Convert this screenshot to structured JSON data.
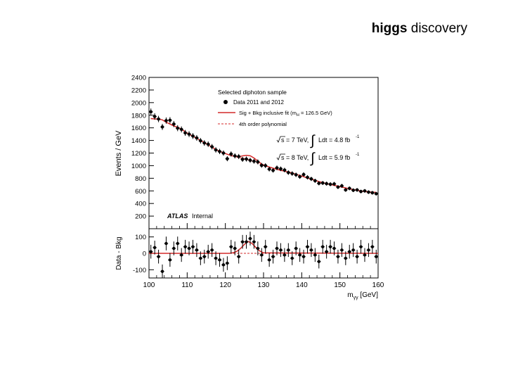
{
  "slide": {
    "title_bold": "higgs",
    "title_rest": " discovery"
  },
  "chart_data": [
    {
      "type": "scatter",
      "title": "",
      "xlabel": "",
      "ylabel": "Events / GeV",
      "xlim": [
        100,
        160
      ],
      "ylim": [
        0,
        2400
      ],
      "yticks": [
        200,
        400,
        600,
        800,
        1000,
        1200,
        1400,
        1600,
        1800,
        2000,
        2200,
        2400
      ],
      "grid": false,
      "legend_placement": "top-right",
      "legend": {
        "header": "Selected diphoton sample",
        "data": "Data 2011 and 2012",
        "fit": "Sig + Bkg inclusive fit (m",
        "fit_sub": "H",
        "fit_tail": " = 126.5 GeV)",
        "poly": "4th order polynomial"
      },
      "lumi": [
        {
          "energy": "s = 7 TeV,",
          "integral": "Ldt = 4.8 fb",
          "sup": "-1"
        },
        {
          "energy": "s = 8 TeV,",
          "integral": "Ldt = 5.9 fb",
          "sup": "-1"
        }
      ],
      "label_bold": "ATLAS",
      "label": "Internal",
      "series": [
        {
          "name": "Data 2011 and 2012",
          "x": [
            100.5,
            101.5,
            102.5,
            103.5,
            104.5,
            105.5,
            106.5,
            107.5,
            108.5,
            109.5,
            110.5,
            111.5,
            112.5,
            113.5,
            114.5,
            115.5,
            116.5,
            117.5,
            118.5,
            119.5,
            120.5,
            121.5,
            122.5,
            123.5,
            124.5,
            125.5,
            126.5,
            127.5,
            128.5,
            129.5,
            130.5,
            131.5,
            132.5,
            133.5,
            134.5,
            135.5,
            136.5,
            137.5,
            138.5,
            139.5,
            140.5,
            141.5,
            142.5,
            143.5,
            144.5,
            145.5,
            146.5,
            147.5,
            148.5,
            149.5,
            150.5,
            151.5,
            152.5,
            153.5,
            154.5,
            155.5,
            156.5,
            157.5,
            158.5,
            159.5
          ],
          "y": [
            1855,
            1780,
            1740,
            1615,
            1715,
            1720,
            1660,
            1595,
            1575,
            1520,
            1500,
            1470,
            1440,
            1395,
            1360,
            1340,
            1300,
            1250,
            1225,
            1200,
            1110,
            1185,
            1155,
            1145,
            1100,
            1105,
            1085,
            1070,
            1060,
            1005,
            1000,
            945,
            925,
            965,
            950,
            930,
            890,
            875,
            855,
            825,
            860,
            815,
            790,
            760,
            720,
            725,
            715,
            705,
            710,
            660,
            680,
            615,
            640,
            610,
            615,
            590,
            600,
            580,
            570,
            555
          ]
        },
        {
          "name": "Sig + Bkg inclusive fit",
          "kind": "line",
          "style": "solid",
          "color": "#d42a2a"
        },
        {
          "name": "4th order polynomial",
          "kind": "line",
          "style": "dashed",
          "color": "#d42a2a"
        }
      ]
    },
    {
      "type": "scatter",
      "xlabel": "m",
      "xlabel_sub": "γγ",
      "xlabel_tail": " [GeV]",
      "ylabel": "Data - Bkg",
      "xlim": [
        100,
        160
      ],
      "ylim": [
        -150,
        150
      ],
      "xticks": [
        100,
        110,
        120,
        130,
        140,
        150,
        160
      ],
      "yticks": [
        -100,
        0,
        100
      ],
      "series": [
        {
          "name": "Data - Bkg",
          "x": [
            100.5,
            101.5,
            102.5,
            103.5,
            104.5,
            105.5,
            106.5,
            107.5,
            108.5,
            109.5,
            110.5,
            111.5,
            112.5,
            113.5,
            114.5,
            115.5,
            116.5,
            117.5,
            118.5,
            119.5,
            120.5,
            121.5,
            122.5,
            123.5,
            124.5,
            125.5,
            126.5,
            127.5,
            128.5,
            129.5,
            130.5,
            131.5,
            132.5,
            133.5,
            134.5,
            135.5,
            136.5,
            137.5,
            138.5,
            139.5,
            140.5,
            141.5,
            142.5,
            143.5,
            144.5,
            145.5,
            146.5,
            147.5,
            148.5,
            149.5,
            150.5,
            151.5,
            152.5,
            153.5,
            154.5,
            155.5,
            156.5,
            157.5,
            158.5,
            159.5
          ],
          "y": [
            10,
            35,
            -20,
            -110,
            60,
            -40,
            30,
            60,
            -10,
            40,
            30,
            40,
            20,
            -30,
            -20,
            10,
            20,
            -30,
            -40,
            -70,
            -60,
            40,
            30,
            -20,
            70,
            70,
            90,
            70,
            30,
            -10,
            40,
            -40,
            -20,
            30,
            20,
            -10,
            20,
            -30,
            30,
            -10,
            -20,
            40,
            20,
            -10,
            -50,
            40,
            10,
            40,
            30,
            -20,
            20,
            -30,
            10,
            20,
            -20,
            40,
            -10,
            20,
            40,
            -20
          ]
        },
        {
          "name": "Sig + Bkg inclusive fit",
          "kind": "line",
          "style": "solid",
          "color": "#d42a2a",
          "x": [
            100,
            121,
            122,
            123,
            124,
            125,
            126,
            127,
            128,
            129,
            130,
            160
          ],
          "y": [
            0,
            0,
            3,
            12,
            30,
            55,
            72,
            60,
            35,
            14,
            3,
            0
          ]
        },
        {
          "name": "4th order polynomial",
          "kind": "line",
          "style": "dashed",
          "color": "#d42a2a"
        }
      ]
    }
  ]
}
